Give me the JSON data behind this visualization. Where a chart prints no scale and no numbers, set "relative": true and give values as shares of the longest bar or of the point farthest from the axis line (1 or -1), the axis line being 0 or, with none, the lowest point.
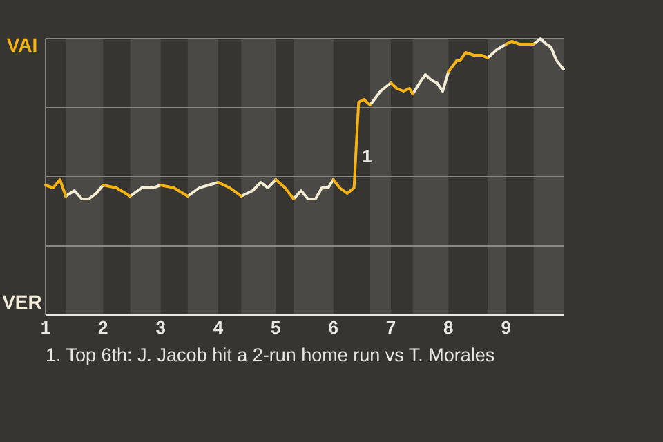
{
  "chart_data": {
    "type": "line",
    "relative": true,
    "xlim": [
      1,
      10
    ],
    "xticks": [
      1,
      2,
      3,
      4,
      5,
      6,
      7,
      8,
      9
    ],
    "grid": "y",
    "marker": "none",
    "line_style": "solid",
    "series": [
      {
        "color": "#f5b311",
        "x": [
          1,
          1.13,
          1.25,
          1.35
        ],
        "values": [
          0.47,
          0.46,
          0.49,
          0.43
        ]
      },
      {
        "color": "#f2ecd1",
        "x": [
          1.35,
          1.5,
          1.63,
          1.75,
          1.88,
          2
        ],
        "values": [
          0.43,
          0.45,
          0.42,
          0.42,
          0.44,
          0.47
        ]
      },
      {
        "color": "#f5b312",
        "x": [
          2,
          2.23,
          2.47
        ],
        "values": [
          0.47,
          0.46,
          0.43
        ]
      },
      {
        "color": "#f2ecd2",
        "x": [
          2.47,
          2.67,
          2.87,
          3
        ],
        "values": [
          0.43,
          0.46,
          0.46,
          0.47
        ]
      },
      {
        "color": "#f5b313",
        "x": [
          3,
          3.23,
          3.47
        ],
        "values": [
          0.47,
          0.46,
          0.43
        ]
      },
      {
        "color": "#f2ecd3",
        "x": [
          3.47,
          3.67,
          3.83,
          4
        ],
        "values": [
          0.43,
          0.46,
          0.47,
          0.48
        ]
      },
      {
        "color": "#f5b314",
        "x": [
          4,
          4.2,
          4.4
        ],
        "values": [
          0.48,
          0.46,
          0.43
        ]
      },
      {
        "color": "#f2ecd4",
        "x": [
          4.4,
          4.6,
          4.74,
          4.86,
          5
        ],
        "values": [
          0.43,
          0.45,
          0.48,
          0.46,
          0.49
        ]
      },
      {
        "color": "#f5b315",
        "x": [
          5,
          5.16,
          5.31
        ],
        "values": [
          0.49,
          0.46,
          0.42
        ]
      },
      {
        "color": "#f2ecd5",
        "x": [
          5.31,
          5.44,
          5.56,
          5.69,
          5.8,
          5.91,
          6
        ],
        "values": [
          0.42,
          0.45,
          0.42,
          0.42,
          0.46,
          0.46,
          0.49
        ]
      },
      {
        "color": "#f5b316",
        "x": [
          6,
          6.11,
          6.24,
          6.36,
          6.4,
          6.44,
          6.53,
          6.64
        ],
        "values": [
          0.49,
          0.46,
          0.44,
          0.46,
          0.62,
          0.77,
          0.78,
          0.76
        ]
      },
      {
        "color": "#f2ecd6",
        "x": [
          6.64,
          6.82,
          7
        ],
        "values": [
          0.76,
          0.81,
          0.84
        ]
      },
      {
        "color": "#f5b317",
        "x": [
          7,
          7.1,
          7.22,
          7.32,
          7.38
        ],
        "values": [
          0.84,
          0.82,
          0.81,
          0.82,
          0.8
        ]
      },
      {
        "color": "#f2ecd7",
        "x": [
          7.38,
          7.5,
          7.6,
          7.7,
          7.8,
          7.9,
          8
        ],
        "values": [
          0.8,
          0.84,
          0.87,
          0.85,
          0.84,
          0.81,
          0.88
        ]
      },
      {
        "color": "#f5b318",
        "x": [
          8,
          8.14,
          8.2,
          8.3,
          8.44,
          8.58,
          8.68
        ],
        "values": [
          0.88,
          0.92,
          0.92,
          0.95,
          0.94,
          0.94,
          0.93
        ]
      },
      {
        "color": "#f2ecd8",
        "x": [
          8.68,
          8.84,
          9
        ],
        "values": [
          0.93,
          0.96,
          0.98
        ]
      },
      {
        "color": "#f5b319",
        "x": [
          9,
          9.1,
          9.24,
          9.38,
          9.48
        ],
        "values": [
          0.98,
          0.99,
          0.98,
          0.98,
          0.98
        ]
      },
      {
        "color": "#f2ecd9",
        "x": [
          9.48,
          9.6,
          9.7,
          9.78,
          9.88,
          10
        ],
        "values": [
          0.98,
          1,
          0.98,
          0.97,
          0.92,
          0.89
        ]
      }
    ],
    "bands": [
      {
        "axis": "x",
        "from": 1.35,
        "to": 2,
        "color": "#4b4946"
      },
      {
        "axis": "x",
        "from": 2.47,
        "to": 3,
        "color": "#4b4946"
      },
      {
        "axis": "x",
        "from": 3.47,
        "to": 4,
        "color": "#4b4946"
      },
      {
        "axis": "x",
        "from": 4.4,
        "to": 5,
        "color": "#4b4946"
      },
      {
        "axis": "x",
        "from": 5.31,
        "to": 6,
        "color": "#4b4946"
      },
      {
        "axis": "x",
        "from": 6.64,
        "to": 7,
        "color": "#4b4946"
      },
      {
        "axis": "x",
        "from": 7.38,
        "to": 8,
        "color": "#4b4946"
      },
      {
        "axis": "x",
        "from": 8.68,
        "to": 9,
        "color": "#4b4946"
      },
      {
        "axis": "x",
        "from": 9.48,
        "to": 10,
        "color": "#4b4946"
      }
    ],
    "annotations": [
      "VAI",
      "VER",
      {
        "text": "1",
        "x": 6.4
      },
      "1. Top 6th: J. Jacob hit a 2-run home run vs T. Morales"
    ]
  }
}
